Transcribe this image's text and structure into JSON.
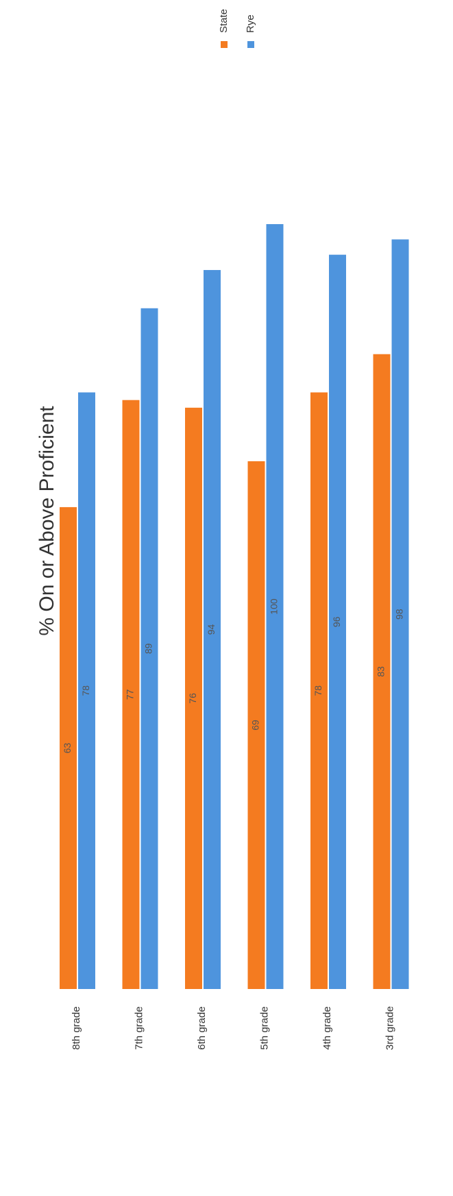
{
  "chart_data": {
    "type": "bar",
    "title": "% On or Above Proficient",
    "categories": [
      "8th grade",
      "7th grade",
      "6th grade",
      "5th grade",
      "4th grade",
      "3rd grade"
    ],
    "series": [
      {
        "name": "State",
        "color": "#f47b20",
        "values": [
          63,
          77,
          76,
          69,
          78,
          83
        ]
      },
      {
        "name": "Rye",
        "color": "#4e94dd",
        "values": [
          78,
          89,
          94,
          100,
          96,
          98
        ]
      }
    ],
    "ylim": [
      0,
      100
    ]
  }
}
